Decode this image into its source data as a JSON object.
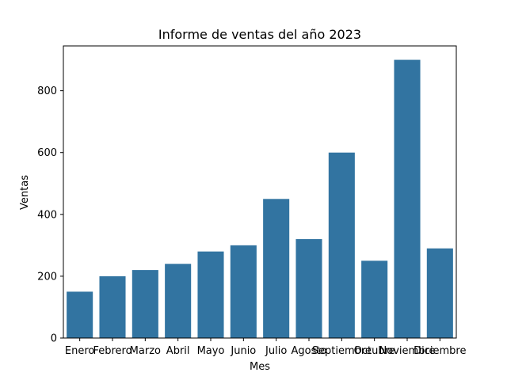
{
  "chart_data": {
    "type": "bar",
    "title": "Informe de ventas del año 2023",
    "xlabel": "Mes",
    "ylabel": "Ventas",
    "categories": [
      "Enero",
      "Febrero",
      "Marzo",
      "Abril",
      "Mayo",
      "Junio",
      "Julio",
      "Agosto",
      "Septiembre",
      "Octubre",
      "Noviembre",
      "Diciembre"
    ],
    "values": [
      150,
      200,
      220,
      240,
      280,
      300,
      450,
      320,
      600,
      250,
      900,
      290
    ],
    "ylim": [
      0,
      945
    ],
    "yticks": [
      0,
      200,
      400,
      600,
      800
    ],
    "bar_color": "#3274a1",
    "grid": false,
    "legend": "none"
  }
}
